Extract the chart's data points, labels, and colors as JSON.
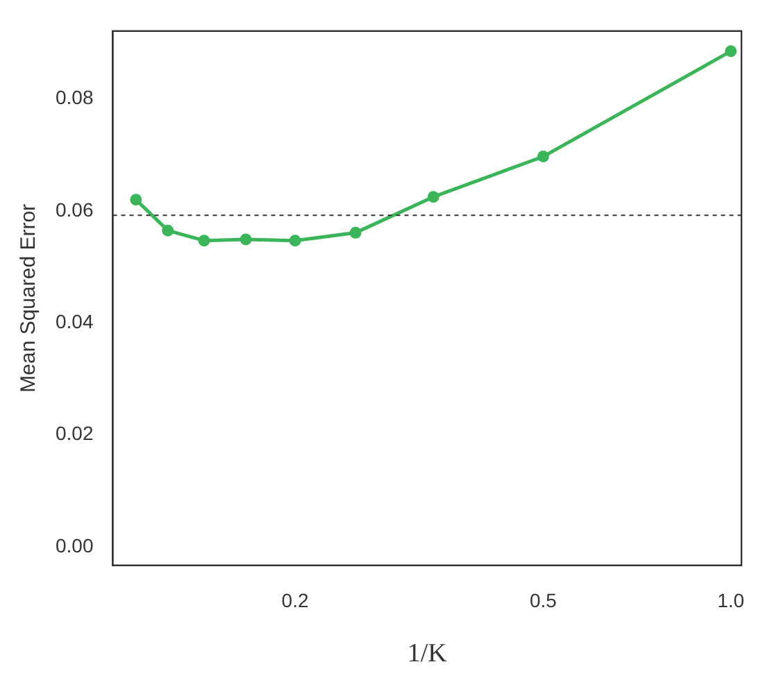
{
  "chart_data": {
    "type": "line",
    "xlabel": "1/K",
    "ylabel": "Mean Squared Error",
    "x": [
      0.1111,
      0.125,
      0.1429,
      0.1667,
      0.2,
      0.25,
      0.3333,
      0.5,
      1.0
    ],
    "series": [
      {
        "color": "#3cb55a",
        "values": [
          0.062,
          0.0565,
          0.0547,
          0.0549,
          0.0547,
          0.0561,
          0.0625,
          0.0697,
          0.0885
        ]
      }
    ],
    "log": "x",
    "xlim": [
      0.102,
      1.04
    ],
    "xticks": [
      0.2,
      0.5,
      {
        "value": 1,
        "label": "1.0"
      }
    ],
    "ylim": [
      -0.0033,
      0.0921
    ],
    "yticks": [
      {
        "value": 0,
        "label": "0.00"
      },
      {
        "value": 0.02,
        "label": "0.02"
      },
      {
        "value": 0.04,
        "label": "0.04"
      },
      {
        "value": 0.06,
        "label": "0.06"
      },
      {
        "value": 0.08,
        "label": "0.08"
      }
    ],
    "ref_lines": [
      {
        "axis": "y",
        "value": 0.0592,
        "color": "#333333",
        "line_style": "dotted"
      }
    ],
    "grid": false,
    "legend": false,
    "marker": "circle",
    "line_style": "solid"
  }
}
